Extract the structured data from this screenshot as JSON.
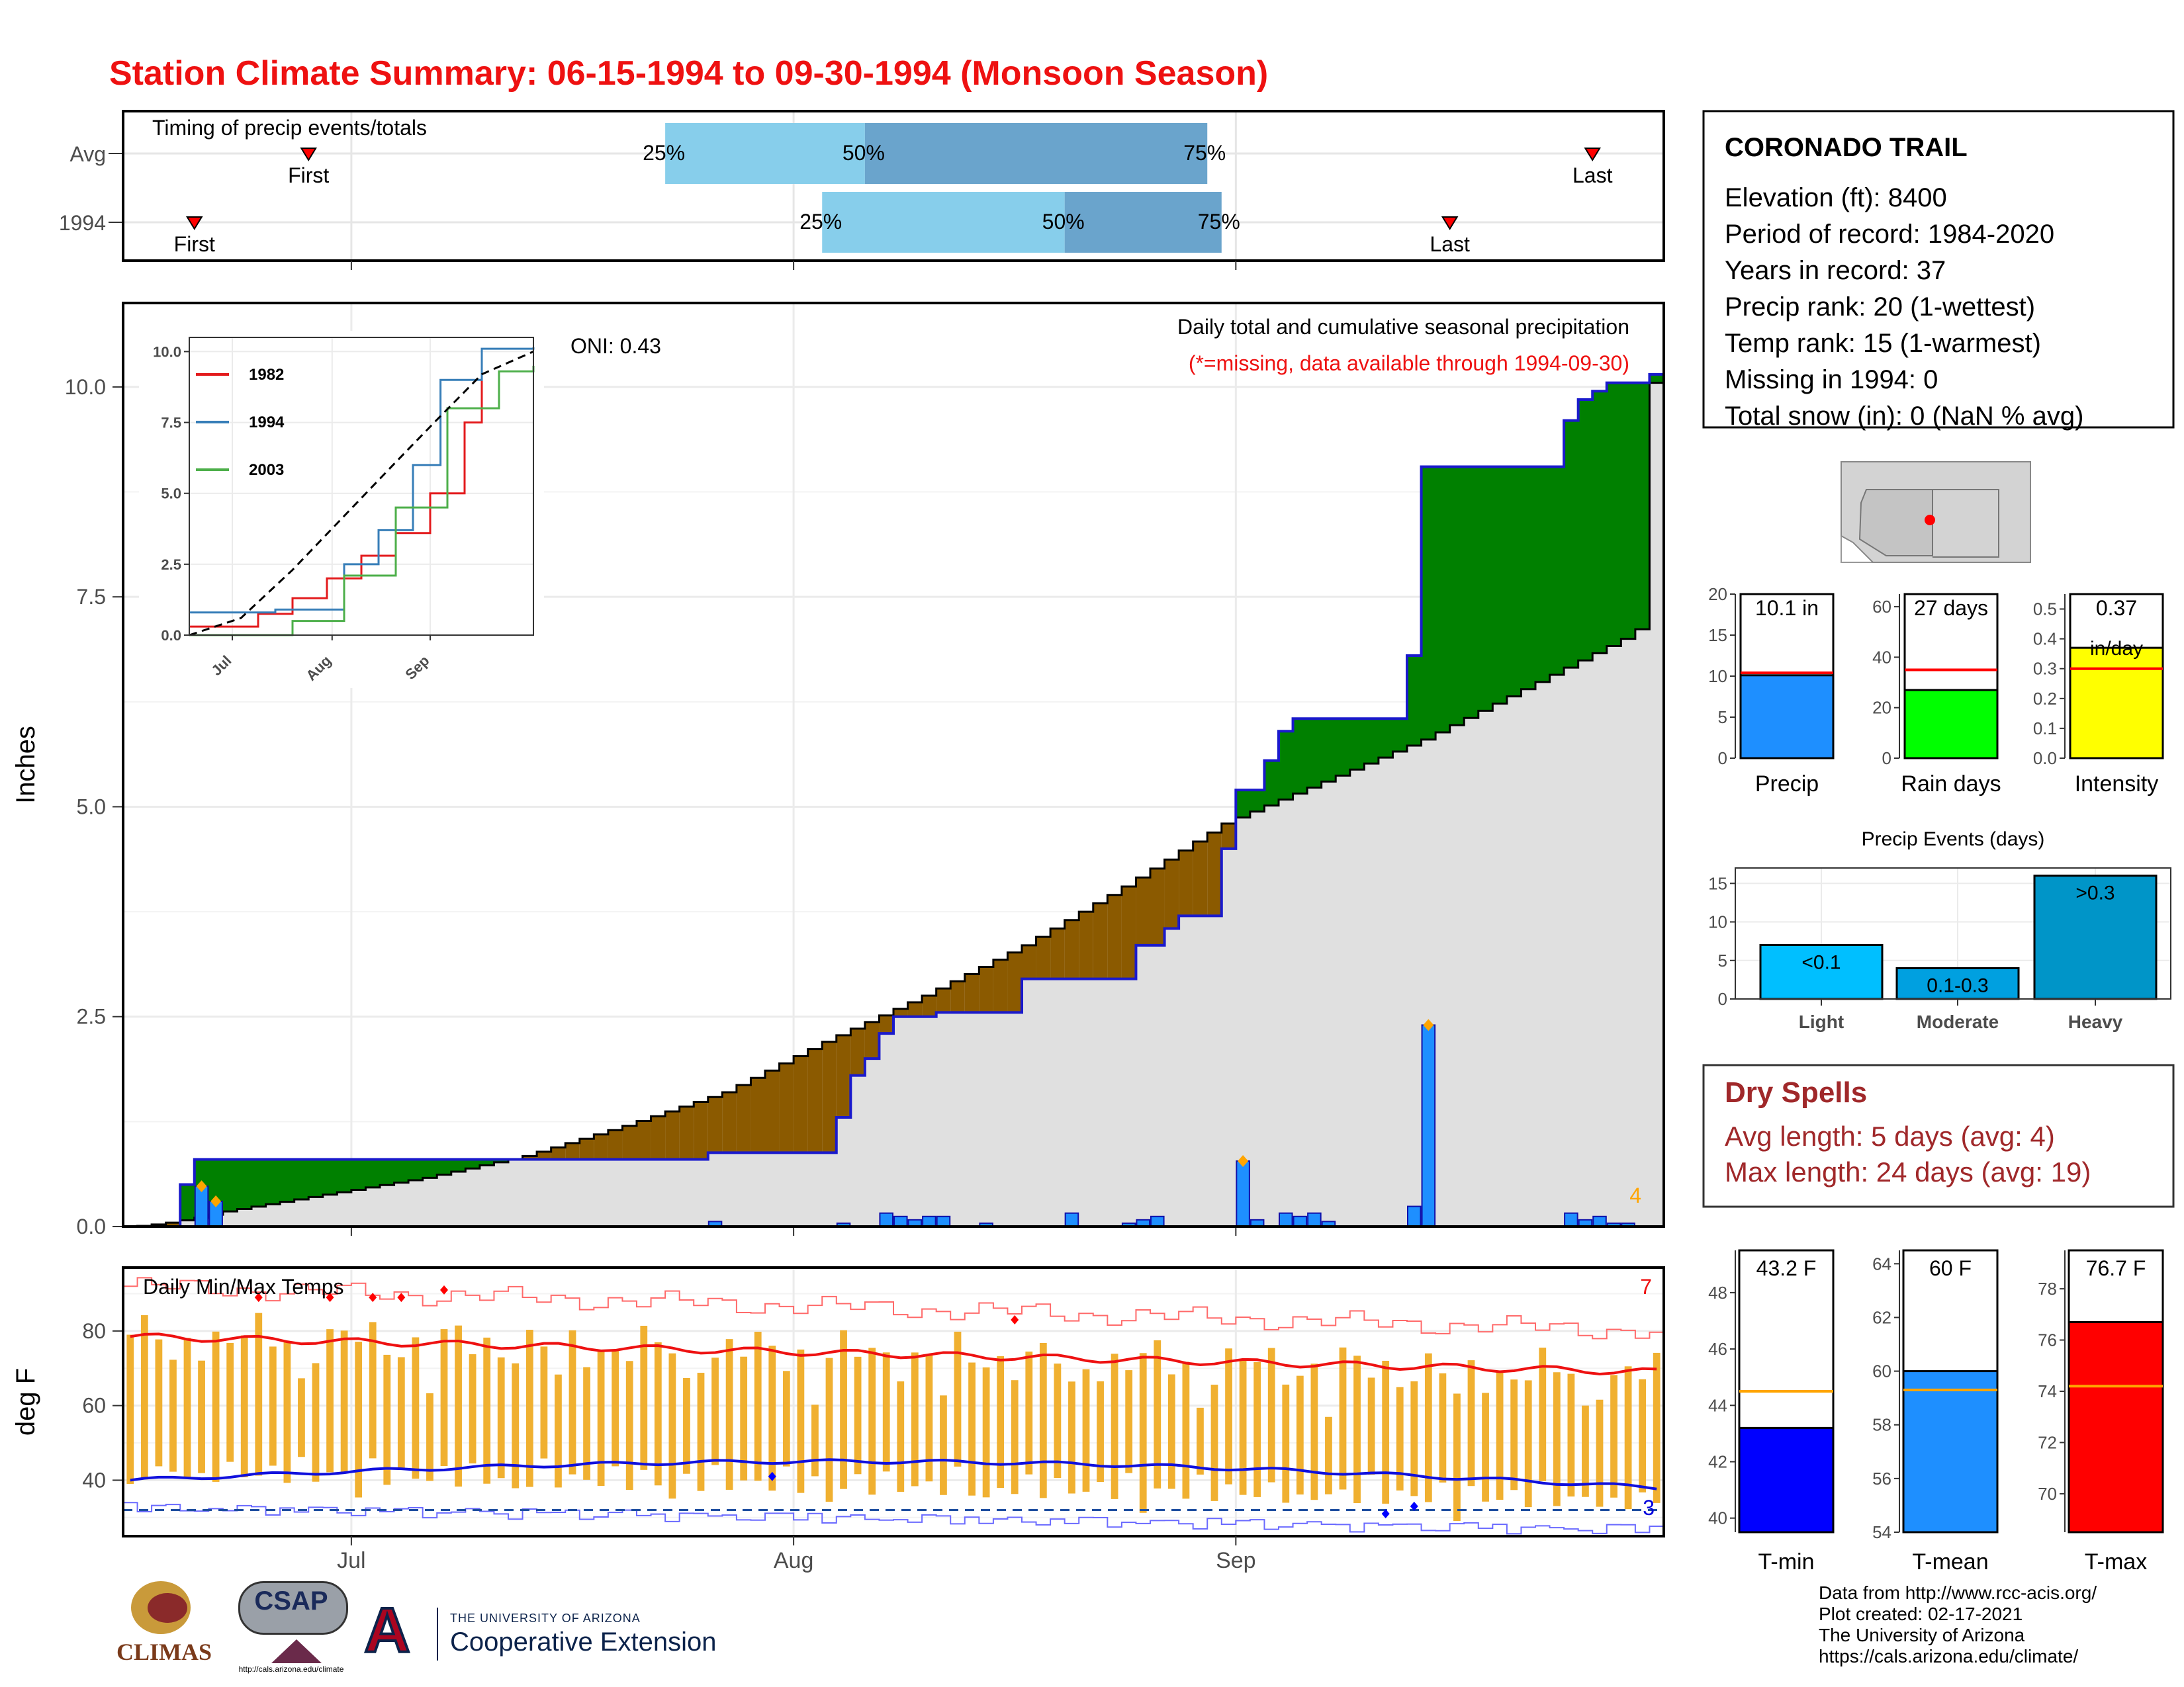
{
  "title": "Station Climate Summary: 06-15-1994 to 09-30-1994 (Monsoon Season)",
  "colors": {
    "title": "#ee1111",
    "q_light": "#87ceeb",
    "q_dark": "#6aa4cc",
    "wet": "#008000",
    "dry": "#8b5a00",
    "avg_area": "#e0e0e0",
    "bar_blue": "#1e8fff",
    "precip_line": "#1a1acc",
    "temp_bar": "#f0b030",
    "tmax_line": "#ee1111",
    "tmin_line": "#1010dd",
    "dry_spell_text": "#a0282a"
  },
  "timing_panel": {
    "label": "Timing of precip events/totals",
    "rows": [
      {
        "name": "Avg",
        "first": "First",
        "last": "Last",
        "q25": "25%",
        "q50": "50%",
        "q75": "75%"
      },
      {
        "name": "1994",
        "first": "First",
        "last": "Last",
        "q25": "25%",
        "q50": "50%",
        "q75": "75%"
      }
    ]
  },
  "station_box": {
    "name": "CORONADO TRAIL",
    "lines": [
      "Elevation (ft): 8400",
      "Period of record: 1984-2020",
      "Years in record: 37",
      "Precip rank: 20 (1-wettest)",
      "Temp rank: 15 (1-warmest)",
      "Missing in 1994: 0",
      "Total snow (in): 0 (NaN % avg)"
    ]
  },
  "precip_panel": {
    "subtitle": "Daily total and cumulative seasonal precipitation",
    "missing_note": "(*=missing, data available through 1994-09-30)",
    "oni": "ONI: 0.43",
    "ylabel": "Inches",
    "yticks": [
      "0.0",
      "2.5",
      "5.0",
      "7.5",
      "10.0"
    ],
    "count_label": "4"
  },
  "inset": {
    "yticks": [
      "0.0",
      "2.5",
      "5.0",
      "7.5",
      "10.0"
    ],
    "xticks": [
      "Jul",
      "Aug",
      "Sep"
    ],
    "legend": [
      {
        "name": "1982",
        "color": "#e31a1c"
      },
      {
        "name": "1994",
        "color": "#377eb8"
      },
      {
        "name": "2003",
        "color": "#4daf4a"
      }
    ]
  },
  "temp_panel": {
    "label": "Daily Min/Max Temps",
    "ylabel": "deg F",
    "yticks": [
      "40",
      "60",
      "80"
    ],
    "count_top": "7",
    "count_bottom": "3"
  },
  "xaxis_months": [
    "Jul",
    "Aug",
    "Sep"
  ],
  "summary_bars": [
    {
      "label": "Precip",
      "value_text": "10.1 in",
      "yticks": [
        "0",
        "5",
        "10",
        "15",
        "20"
      ],
      "color": "#1e8fff"
    },
    {
      "label": "Rain days",
      "value_text": "27 days",
      "yticks": [
        "0",
        "20",
        "40",
        "60"
      ],
      "color": "#00ff00"
    },
    {
      "label": "Intensity",
      "value_text": "0.37",
      "value_text2": "in/day",
      "yticks": [
        "0.0",
        "0.1",
        "0.2",
        "0.3",
        "0.4",
        "0.5"
      ],
      "color": "#ffff00"
    }
  ],
  "events_panel": {
    "title": "Precip Events (days)",
    "yticks": [
      "0",
      "5",
      "10",
      "15"
    ],
    "bars": [
      {
        "label": "Light",
        "tag": "<0.1"
      },
      {
        "label": "Moderate",
        "tag": "0.1-0.3"
      },
      {
        "label": "Heavy",
        "tag": ">0.3"
      }
    ]
  },
  "dry_spells": {
    "title": "Dry Spells",
    "avg": "Avg length: 5 days (avg: 4)",
    "max": "Max length: 24 days (avg: 19)"
  },
  "temp_bars": [
    {
      "label": "T-min",
      "value_text": "43.2 F",
      "yticks": [
        "40",
        "42",
        "44",
        "46",
        "48"
      ],
      "color": "#0000ff"
    },
    {
      "label": "T-mean",
      "value_text": "60 F",
      "yticks": [
        "54",
        "56",
        "58",
        "60",
        "62",
        "64"
      ],
      "color": "#1e8fff"
    },
    {
      "label": "T-max",
      "value_text": "76.7 F",
      "yticks": [
        "70",
        "72",
        "74",
        "76",
        "78"
      ],
      "color": "#ff0000"
    }
  ],
  "footer": {
    "lines": [
      "Data from http://www.rcc-acis.org/",
      "Plot created: 02-17-2021",
      "The University of Arizona",
      "https://cals.arizona.edu/climate/"
    ]
  },
  "logos": {
    "climas": "CLIMAS",
    "csap": "CSAP",
    "csap_url": "http://cals.arizona.edu/climate",
    "ua_small": "THE UNIVERSITY OF ARIZONA",
    "ua_big": "Cooperative Extension"
  },
  "chart_data": [
    {
      "type": "bar",
      "name": "timing",
      "x_domain": [
        "1994-06-15",
        "1994-09-30"
      ],
      "rows": [
        {
          "row": "Avg",
          "first": "1994-06-28",
          "q25": "1994-07-23",
          "q50": "1994-08-06",
          "q75": "1994-08-30",
          "last": "1994-09-26"
        },
        {
          "row": "1994",
          "first": "1994-06-20",
          "q25": "1994-08-03",
          "q50": "1994-08-20",
          "q75": "1994-08-31",
          "last": "1994-09-16"
        }
      ]
    },
    {
      "type": "area",
      "name": "cumulative_precip",
      "x_start": "1994-06-15",
      "x_end": "1994-09-30",
      "ylim": [
        0,
        11
      ],
      "avg_cumulative_weekly": [
        0.0,
        0.18,
        0.38,
        0.58,
        0.84,
        1.2,
        1.6,
        2.2,
        2.75,
        3.35,
        4.05,
        4.8,
        5.3,
        5.8,
        6.4,
        7.0,
        7.8,
        8.1,
        8.9,
        9.4,
        9.7,
        9.9
      ],
      "obs_cumulative_steps": [
        {
          "date": "1994-06-15",
          "value": 0.0
        },
        {
          "date": "1994-06-19",
          "value": 0.5
        },
        {
          "date": "1994-06-20",
          "value": 0.8
        },
        {
          "date": "1994-07-26",
          "value": 0.88
        },
        {
          "date": "1994-08-04",
          "value": 1.3
        },
        {
          "date": "1994-08-05",
          "value": 1.8
        },
        {
          "date": "1994-08-06",
          "value": 2.0
        },
        {
          "date": "1994-08-07",
          "value": 2.3
        },
        {
          "date": "1994-08-08",
          "value": 2.5
        },
        {
          "date": "1994-08-11",
          "value": 2.55
        },
        {
          "date": "1994-08-17",
          "value": 2.95
        },
        {
          "date": "1994-08-25",
          "value": 3.35
        },
        {
          "date": "1994-08-27",
          "value": 3.55
        },
        {
          "date": "1994-08-28",
          "value": 3.7
        },
        {
          "date": "1994-08-31",
          "value": 4.5
        },
        {
          "date": "1994-09-01",
          "value": 5.2
        },
        {
          "date": "1994-09-03",
          "value": 5.55
        },
        {
          "date": "1994-09-04",
          "value": 5.9
        },
        {
          "date": "1994-09-05",
          "value": 6.05
        },
        {
          "date": "1994-09-13",
          "value": 6.8
        },
        {
          "date": "1994-09-14",
          "value": 9.05
        },
        {
          "date": "1994-09-24",
          "value": 9.6
        },
        {
          "date": "1994-09-25",
          "value": 9.85
        },
        {
          "date": "1994-09-26",
          "value": 9.95
        },
        {
          "date": "1994-09-27",
          "value": 10.05
        },
        {
          "date": "1994-09-30",
          "value": 10.15
        }
      ],
      "daily_precip": [
        {
          "date": "1994-06-20",
          "value": 0.48
        },
        {
          "date": "1994-06-21",
          "value": 0.3
        },
        {
          "date": "1994-07-26",
          "value": 0.06
        },
        {
          "date": "1994-08-04",
          "value": 0.04
        },
        {
          "date": "1994-08-07",
          "value": 0.16
        },
        {
          "date": "1994-08-08",
          "value": 0.12
        },
        {
          "date": "1994-08-09",
          "value": 0.08
        },
        {
          "date": "1994-08-10",
          "value": 0.12
        },
        {
          "date": "1994-08-11",
          "value": 0.12
        },
        {
          "date": "1994-08-14",
          "value": 0.04
        },
        {
          "date": "1994-08-20",
          "value": 0.16
        },
        {
          "date": "1994-08-24",
          "value": 0.04
        },
        {
          "date": "1994-08-25",
          "value": 0.08
        },
        {
          "date": "1994-08-26",
          "value": 0.12
        },
        {
          "date": "1994-09-01",
          "value": 0.78
        },
        {
          "date": "1994-09-02",
          "value": 0.08
        },
        {
          "date": "1994-09-04",
          "value": 0.16
        },
        {
          "date": "1994-09-05",
          "value": 0.12
        },
        {
          "date": "1994-09-06",
          "value": 0.16
        },
        {
          "date": "1994-09-07",
          "value": 0.06
        },
        {
          "date": "1994-09-13",
          "value": 0.24
        },
        {
          "date": "1994-09-14",
          "value": 2.4
        },
        {
          "date": "1994-09-24",
          "value": 0.16
        },
        {
          "date": "1994-09-25",
          "value": 0.08
        },
        {
          "date": "1994-09-26",
          "value": 0.12
        },
        {
          "date": "1994-09-27",
          "value": 0.04
        },
        {
          "date": "1994-09-28",
          "value": 0.04
        }
      ],
      "record_markers": [
        "1994-06-20",
        "1994-06-21",
        "1994-09-01",
        "1994-09-14"
      ]
    },
    {
      "type": "line",
      "name": "inset_cumulative",
      "ylim": [
        0,
        10
      ],
      "series": [
        {
          "name": "1982",
          "points": [
            [
              0,
              0.3
            ],
            [
              0.2,
              0.75
            ],
            [
              0.3,
              1.3
            ],
            [
              0.4,
              2.0
            ],
            [
              0.5,
              2.8
            ],
            [
              0.6,
              3.6
            ],
            [
              0.7,
              5.0
            ],
            [
              0.8,
              7.5
            ],
            [
              0.85,
              10.0
            ]
          ]
        },
        {
          "name": "1994",
          "points": [
            [
              0,
              0.8
            ],
            [
              0.25,
              0.9
            ],
            [
              0.45,
              2.5
            ],
            [
              0.55,
              3.7
            ],
            [
              0.65,
              6.0
            ],
            [
              0.73,
              9.0
            ],
            [
              0.85,
              10.1
            ],
            [
              1.0,
              10.15
            ]
          ]
        },
        {
          "name": "2003",
          "points": [
            [
              0,
              0.0
            ],
            [
              0.3,
              0.5
            ],
            [
              0.45,
              2.1
            ],
            [
              0.6,
              4.5
            ],
            [
              0.75,
              8.0
            ],
            [
              0.9,
              9.3
            ],
            [
              1.0,
              9.5
            ]
          ]
        },
        {
          "name": "avg",
          "points": [
            [
              0,
              0.0
            ],
            [
              0.15,
              0.6
            ],
            [
              0.3,
              2.3
            ],
            [
              0.45,
              4.2
            ],
            [
              0.6,
              6.1
            ],
            [
              0.72,
              7.6
            ],
            [
              0.85,
              9.2
            ],
            [
              1.0,
              10.0
            ]
          ]
        }
      ]
    },
    {
      "type": "bar",
      "name": "daily_temps",
      "ylim": [
        25,
        97
      ],
      "freezing_line": 32,
      "tmax_first": 79,
      "tmax_last": 68,
      "tmin_first": 39,
      "tmin_last": 38,
      "tmax_avg_first": 78.5,
      "tmax_avg_last": 69,
      "tmin_avg_first": 40,
      "tmin_avg_last": 38,
      "tmax_record_first": 92,
      "tmax_record_last": 80,
      "tmin_record_first": 32,
      "tmin_record_last": 28
    },
    {
      "type": "bar",
      "name": "season_totals",
      "categories": [
        "Precip",
        "Rain days",
        "Intensity"
      ],
      "values": [
        10.1,
        27,
        0.37
      ],
      "averages": [
        10.4,
        35,
        0.3
      ],
      "ylims": [
        [
          0,
          20
        ],
        [
          0,
          65
        ],
        [
          0,
          0.55
        ]
      ]
    },
    {
      "type": "bar",
      "name": "precip_events",
      "categories": [
        "Light",
        "Moderate",
        "Heavy"
      ],
      "values": [
        7,
        4,
        16
      ],
      "ylim": [
        0,
        17
      ]
    },
    {
      "type": "bar",
      "name": "season_temps",
      "categories": [
        "T-min",
        "T-mean",
        "T-max"
      ],
      "values": [
        43.2,
        60,
        76.7
      ],
      "averages": [
        44.5,
        59.3,
        74.2
      ],
      "ylims": [
        [
          39.5,
          49.5
        ],
        [
          54,
          64.5
        ],
        [
          68.5,
          79.5
        ]
      ]
    }
  ]
}
